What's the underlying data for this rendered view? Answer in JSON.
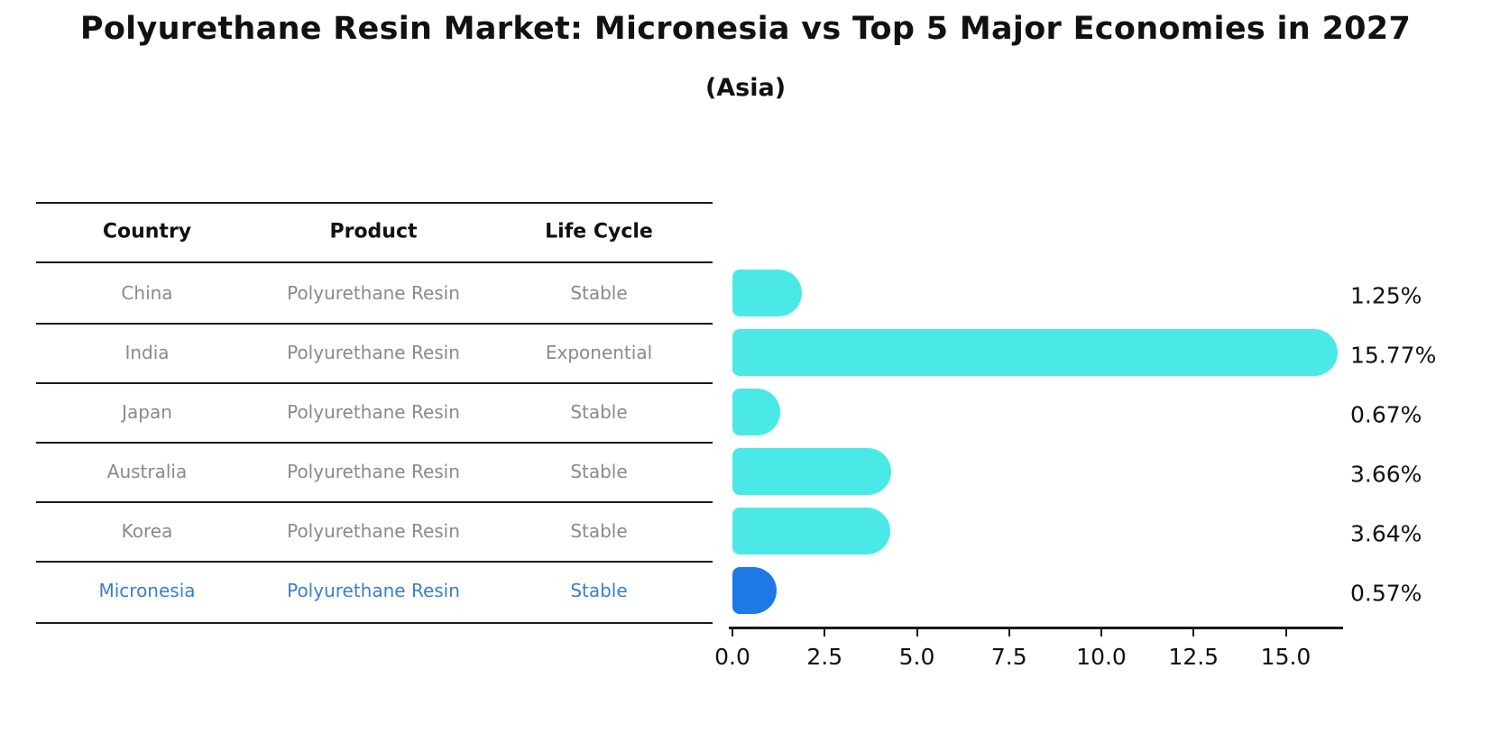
{
  "title": "Polyurethane Resin Market: Micronesia vs Top 5 Major Economies in 2027",
  "subtitle": "(Asia)",
  "table": {
    "columns": [
      "Country",
      "Product",
      "Life Cycle"
    ],
    "rows": [
      {
        "country": "China",
        "product": "Polyurethane Resin",
        "life_cycle": "Stable",
        "highlight": false
      },
      {
        "country": "India",
        "product": "Polyurethane Resin",
        "life_cycle": "Exponential",
        "highlight": false
      },
      {
        "country": "Japan",
        "product": "Polyurethane Resin",
        "life_cycle": "Stable",
        "highlight": false
      },
      {
        "country": "Australia",
        "product": "Polyurethane Resin",
        "life_cycle": "Stable",
        "highlight": false
      },
      {
        "country": "Korea",
        "product": "Polyurethane Resin",
        "life_cycle": "Stable",
        "highlight": false
      },
      {
        "country": "Micronesia",
        "product": "Polyurethane Resin",
        "life_cycle": "Stable",
        "highlight": true
      }
    ]
  },
  "chart_data": {
    "type": "bar",
    "orientation": "horizontal",
    "title": "Polyurethane Resin Market: Micronesia vs Top 5 Major Economies in 2027",
    "subtitle": "(Asia)",
    "categories": [
      "China",
      "India",
      "Japan",
      "Australia",
      "Korea",
      "Micronesia"
    ],
    "values": [
      1.25,
      15.77,
      0.67,
      3.66,
      3.64,
      0.57
    ],
    "value_labels": [
      "1.25%",
      "15.77%",
      "0.67%",
      "3.66%",
      "3.64%",
      "0.57%"
    ],
    "highlight_category": "Micronesia",
    "xlabel": "",
    "ylabel": "",
    "xlim": [
      0,
      16.6
    ],
    "xticks": [
      0.0,
      2.5,
      5.0,
      7.5,
      10.0,
      12.5,
      15.0
    ],
    "xtick_labels": [
      "0.0",
      "2.5",
      "5.0",
      "7.5",
      "10.0",
      "12.5",
      "15.0"
    ],
    "grid": false,
    "legend": null
  },
  "colors": {
    "bar_default": "#4be8e8",
    "bar_highlight": "#1e78e5",
    "row_text": "#8a8a8a",
    "highlight_text": "#3b7fc8",
    "header_text": "#111111",
    "axis_text": "#111111"
  }
}
